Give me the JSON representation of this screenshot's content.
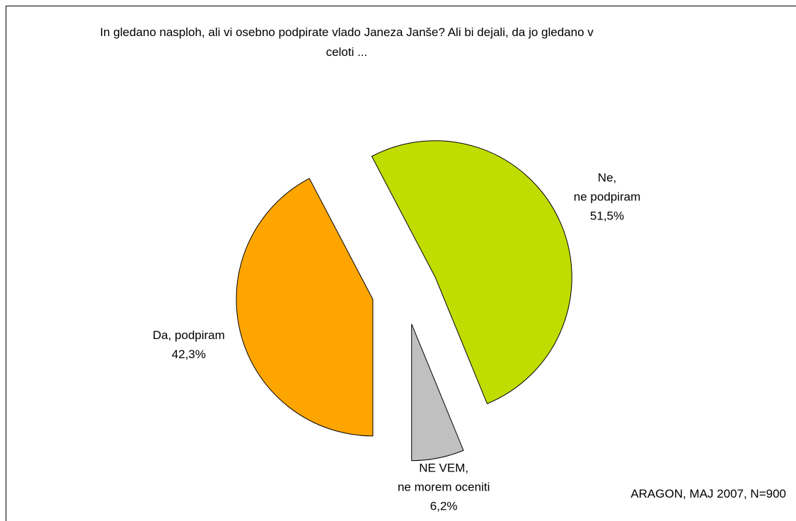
{
  "chart_data": {
    "type": "pie",
    "title": "In gledano nasploh, ali vi osebno podpirate vlado Janeza Janše? Ali bi dejali, da jo gledano v celoti ...",
    "source": "ARAGON, MAJ 2007, N=900",
    "categories": [
      "Da, podpiram",
      "Ne,\nne podpiram",
      "NE VEM,\nne morem oceniti"
    ],
    "values": [
      42.3,
      51.5,
      6.2
    ],
    "value_labels": [
      "42,3%",
      "51,5%",
      "6,2%"
    ],
    "colors": [
      "#ffa500",
      "#c0dc00",
      "#c0c0c0"
    ]
  }
}
